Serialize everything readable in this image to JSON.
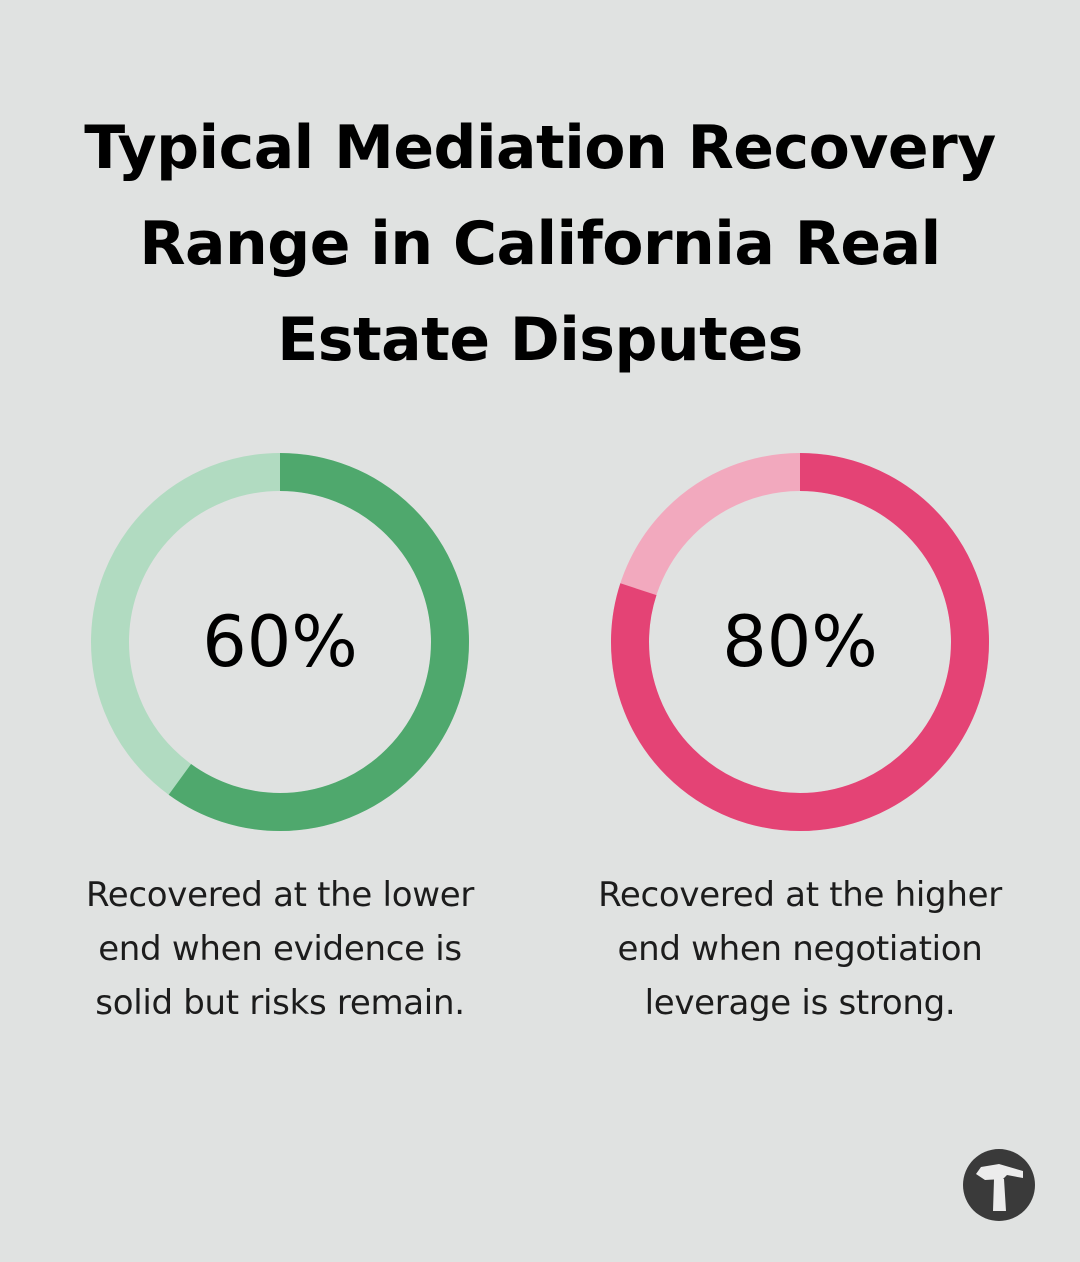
{
  "chart_data": {
    "type": "pie",
    "title": "Typical Mediation Recovery Range in California Real Estate Disputes",
    "title_lines": [
      "Typical Mediation Recovery",
      "Range in California Real",
      "Estate Disputes"
    ],
    "charts": [
      {
        "value": 60,
        "label": "60%",
        "colors": {
          "filled": "#4fa86d",
          "track": "#b1dbc1"
        },
        "caption_lines": [
          "Recovered at the lower",
          "end when evidence is",
          "solid but risks remain."
        ]
      },
      {
        "value": 80,
        "label": "80%",
        "colors": {
          "filled": "#e44375",
          "track": "#f2a9be"
        },
        "caption_lines": [
          "Recovered at the higher",
          "end when negotiation",
          "leverage is strong."
        ]
      }
    ]
  },
  "logo": {
    "icon": "hammer-icon",
    "color": "#3a3a3a"
  }
}
